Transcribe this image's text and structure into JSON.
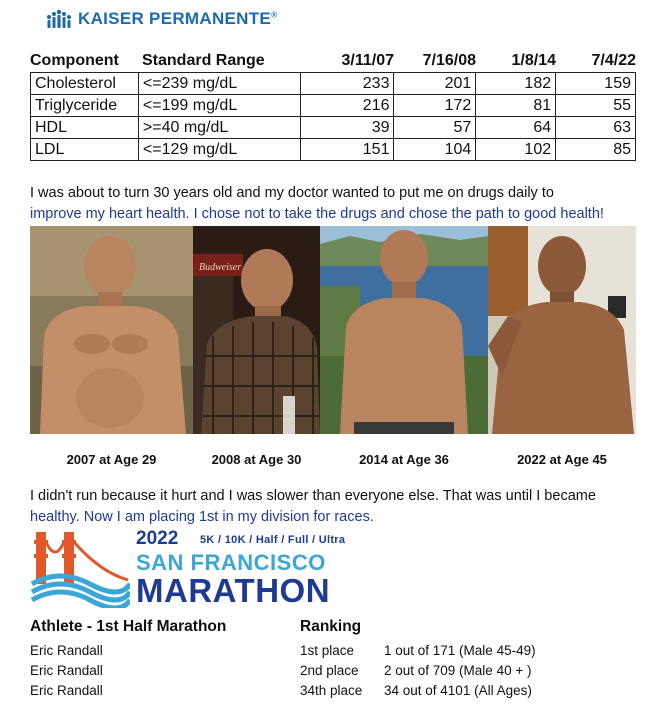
{
  "logo": {
    "brand": "KAISER PERMANENTE",
    "tm": "®",
    "color": "#1b6ab0"
  },
  "lab": {
    "headers": [
      "Component",
      "Standard Range",
      "3/11/07",
      "7/16/08",
      "1/8/14",
      "7/4/22"
    ],
    "rows": [
      {
        "component": "Cholesterol",
        "range": "<=239 mg/dL",
        "values": [
          "233",
          "201",
          "182",
          "159"
        ]
      },
      {
        "component": "Triglyceride",
        "range": "<=199 mg/dL",
        "values": [
          "216",
          "172",
          "81",
          "55"
        ]
      },
      {
        "component": "HDL",
        "range": ">=40 mg/dL",
        "values": [
          "39",
          "57",
          "64",
          "63"
        ]
      },
      {
        "component": "LDL",
        "range": "<=129 mg/dL",
        "values": [
          "151",
          "104",
          "102",
          "85"
        ]
      }
    ]
  },
  "story1": {
    "line1": "I was about to turn 30 years old and my doctor wanted to put me on drugs daily to",
    "line2": "improve my heart health. I chose not to take the drugs and chose the path to good health!"
  },
  "photos": {
    "captions": [
      "2007 at Age 29",
      "2008 at Age 30",
      "2014 at Age 36",
      "2022 at Age 45"
    ],
    "sign_text": "Budweiser"
  },
  "story2": {
    "line1": "I didn't run because it hurt and I was slower than everyone else. That was until I became",
    "line2": "healthy. Now I am placing 1st in my division for races."
  },
  "marathon": {
    "year": "2022",
    "distances": "5K / 10K / Half / Full / Ultra",
    "city": "SAN FRANCISCO",
    "name": "MARATHON"
  },
  "results": {
    "header_athlete": "Athlete - 1st Half Marathon",
    "header_ranking": "Ranking",
    "rows": [
      {
        "name": "Eric Randall",
        "place": "1st place",
        "detail": "1 out of 171 (Male 45-49)"
      },
      {
        "name": "Eric Randall",
        "place": "2nd place",
        "detail": "2 out of 709 (Male 40 + )"
      },
      {
        "name": "Eric Randall",
        "place": "34th place",
        "detail": "34 out of 4101 (All Ages)"
      }
    ]
  }
}
